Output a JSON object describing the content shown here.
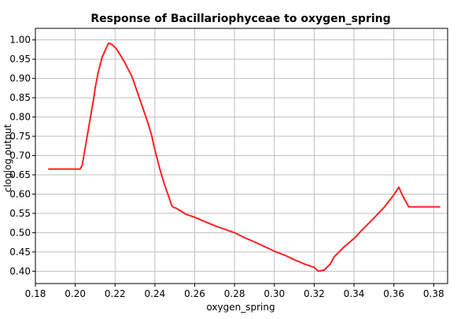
{
  "chart_data": {
    "type": "line",
    "title": "Response of Bacillariophyceae to oxygen_spring",
    "xlabel": "oxygen_spring",
    "ylabel": "cloglog output",
    "xlim": [
      0.18,
      0.387
    ],
    "ylim": [
      0.368,
      1.03
    ],
    "grid": true,
    "xticks": [
      0.18,
      0.2,
      0.22,
      0.24,
      0.26,
      0.28,
      0.3,
      0.32,
      0.34,
      0.36,
      0.38
    ],
    "xtick_labels": [
      "0.18",
      "0.20",
      "0.22",
      "0.24",
      "0.26",
      "0.28",
      "0.30",
      "0.32",
      "0.34",
      "0.36",
      "0.38"
    ],
    "yticks": [
      0.4,
      0.45,
      0.5,
      0.55,
      0.6,
      0.65,
      0.7,
      0.75,
      0.8,
      0.85,
      0.9,
      0.95,
      1.0
    ],
    "ytick_labels": [
      "0.40",
      "0.45",
      "0.50",
      "0.55",
      "0.60",
      "0.65",
      "0.70",
      "0.75",
      "0.80",
      "0.85",
      "0.90",
      "0.95",
      "1.00"
    ],
    "series": [
      {
        "color": "#ff2020",
        "x": [
          0.1867,
          0.195,
          0.2025,
          0.2035,
          0.2055,
          0.2075,
          0.2095,
          0.21,
          0.2115,
          0.2135,
          0.2155,
          0.2168,
          0.2185,
          0.2205,
          0.2225,
          0.2245,
          0.2265,
          0.2285,
          0.2305,
          0.2325,
          0.2345,
          0.2365,
          0.2385,
          0.2395,
          0.2405,
          0.2425,
          0.2445,
          0.2465,
          0.2485,
          0.2495,
          0.2505,
          0.2525,
          0.2555,
          0.26,
          0.265,
          0.27,
          0.28,
          0.285,
          0.29,
          0.295,
          0.3,
          0.305,
          0.31,
          0.315,
          0.32,
          0.322,
          0.325,
          0.328,
          0.33,
          0.335,
          0.34,
          0.345,
          0.35,
          0.355,
          0.36,
          0.3625,
          0.3645,
          0.3675,
          0.375,
          0.383
        ],
        "values": [
          0.665,
          0.665,
          0.665,
          0.675,
          0.735,
          0.795,
          0.855,
          0.875,
          0.915,
          0.955,
          0.978,
          0.992,
          0.988,
          0.978,
          0.962,
          0.945,
          0.925,
          0.905,
          0.875,
          0.845,
          0.815,
          0.785,
          0.75,
          0.725,
          0.705,
          0.665,
          0.63,
          0.6,
          0.57,
          0.565,
          0.564,
          0.558,
          0.548,
          0.54,
          0.529,
          0.518,
          0.5,
          0.487,
          0.476,
          0.464,
          0.452,
          0.442,
          0.43,
          0.419,
          0.41,
          0.4,
          0.403,
          0.418,
          0.437,
          0.463,
          0.485,
          0.512,
          0.538,
          0.565,
          0.598,
          0.618,
          0.595,
          0.567,
          0.567,
          0.567
        ]
      }
    ]
  }
}
